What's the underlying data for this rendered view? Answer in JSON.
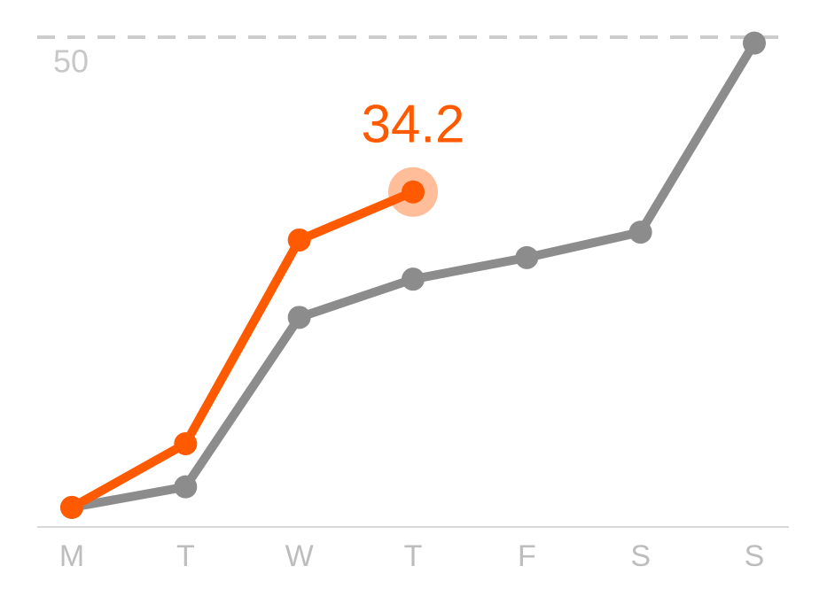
{
  "chart_data": {
    "type": "line",
    "categories": [
      "M",
      "T",
      "W",
      "T",
      "F",
      "S",
      "S"
    ],
    "series": [
      {
        "color": "#8c8c8c",
        "values": [
          2.0,
          4.1,
          21.4,
          25.3,
          27.5,
          30.1,
          49.4
        ]
      },
      {
        "color": "#ff5a00",
        "values": [
          2.0,
          8.5,
          29.3,
          34.2,
          null,
          null,
          null
        ],
        "highlight_last": true
      }
    ],
    "ylim": [
      0,
      50
    ],
    "yticks": [
      50
    ],
    "grid": true
  }
}
